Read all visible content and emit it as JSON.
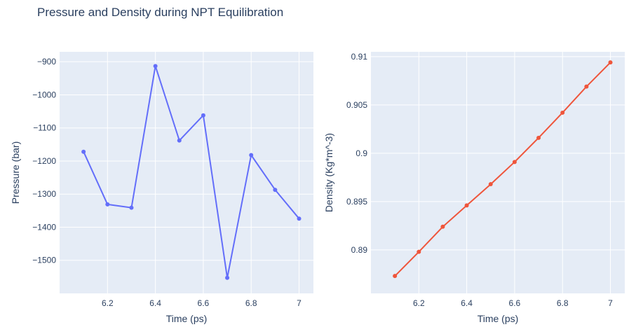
{
  "figure": {
    "title": "Pressure and Density during NPT Equilibration",
    "background": "#ffffff",
    "plot_background": "#e5ecf6",
    "grid_color": "#ffffff",
    "text_color": "#2a3f5f"
  },
  "chart_data": [
    {
      "type": "line",
      "name": "pressure-panel",
      "title": "",
      "xlabel": "Time (ps)",
      "ylabel": "Pressure (bar)",
      "grid": true,
      "color": "#636efa",
      "x": [
        6.1,
        6.2,
        6.3,
        6.4,
        6.5,
        6.6,
        6.7,
        6.8,
        6.9,
        7.0
      ],
      "y": [
        -1172,
        -1331,
        -1341,
        -913,
        -1138,
        -1062,
        -1553,
        -1182,
        -1287,
        -1374
      ],
      "xlim": [
        6.0,
        7.06
      ],
      "ylim": [
        -1600,
        -870
      ],
      "xticks": [
        6.2,
        6.4,
        6.6,
        6.8,
        7.0
      ],
      "xtick_labels": [
        "6.2",
        "6.4",
        "6.6",
        "6.8",
        "7"
      ],
      "yticks": [
        -900,
        -1000,
        -1100,
        -1200,
        -1300,
        -1400,
        -1500
      ],
      "ytick_labels": [
        "−900",
        "−1000",
        "−1100",
        "−1200",
        "−1300",
        "−1400",
        "−1500"
      ]
    },
    {
      "type": "line",
      "name": "density-panel",
      "title": "",
      "xlabel": "Time (ps)",
      "ylabel": "Density (Kg*m^-3)",
      "grid": true,
      "color": "#ef553b",
      "x": [
        6.1,
        6.2,
        6.3,
        6.4,
        6.5,
        6.6,
        6.7,
        6.8,
        6.9,
        7.0
      ],
      "y": [
        0.8873,
        0.8898,
        0.8924,
        0.8946,
        0.8968,
        0.8991,
        0.9016,
        0.9042,
        0.9069,
        0.9094
      ],
      "xlim": [
        6.0,
        7.06
      ],
      "ylim": [
        0.8855,
        0.9105
      ],
      "xticks": [
        6.2,
        6.4,
        6.6,
        6.8,
        7.0
      ],
      "xtick_labels": [
        "6.2",
        "6.4",
        "6.6",
        "6.8",
        "7"
      ],
      "yticks": [
        0.89,
        0.895,
        0.9,
        0.905,
        0.91
      ],
      "ytick_labels": [
        "0.89",
        "0.895",
        "0.9",
        "0.905",
        "0.91"
      ]
    }
  ]
}
